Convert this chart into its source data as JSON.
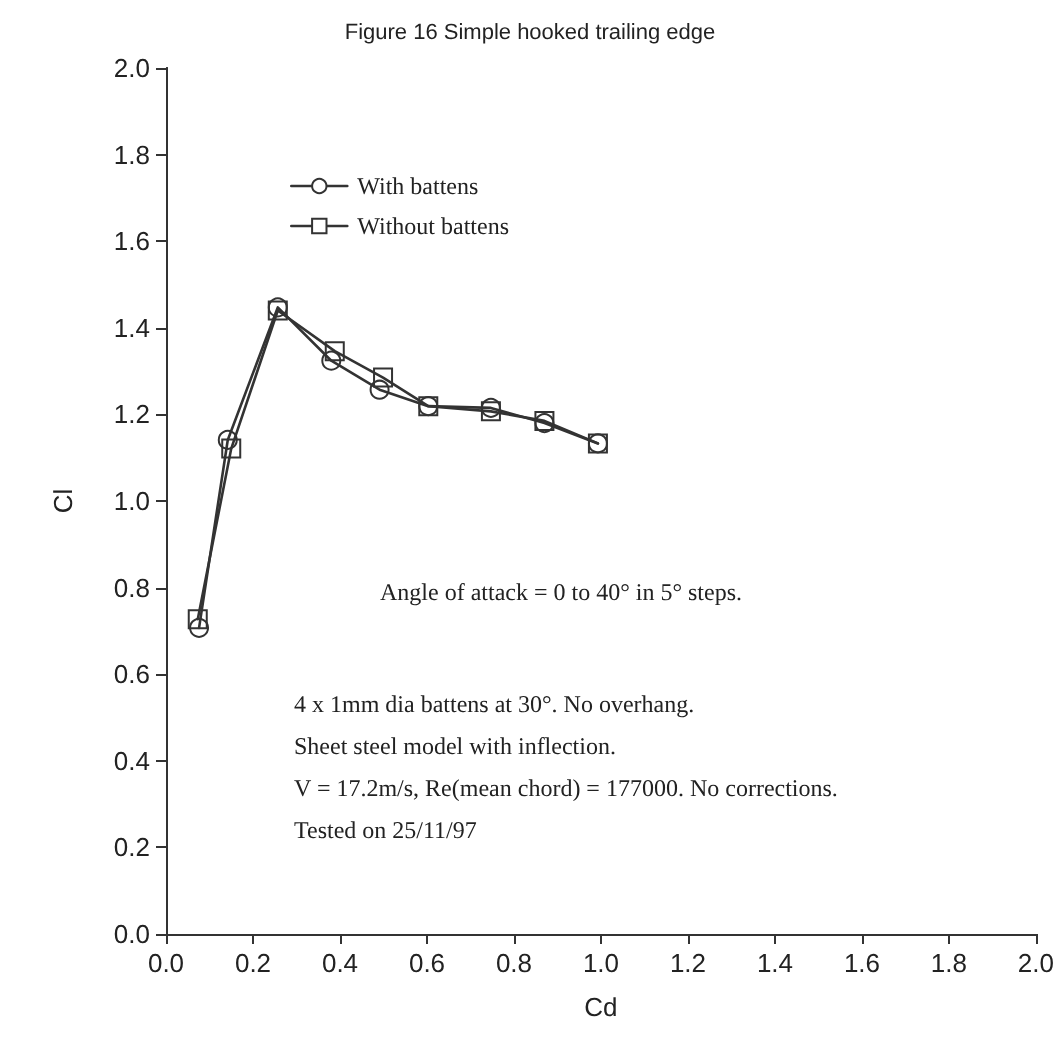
{
  "chart_data": {
    "type": "line",
    "title": "Figure 16 Simple hooked trailing edge",
    "xlabel": "Cd",
    "ylabel": "Cl",
    "xlim": [
      0,
      2
    ],
    "xticks": [
      {
        "value": 0,
        "label": "0.0"
      },
      0.2,
      0.4,
      0.6,
      0.8,
      {
        "value": 1,
        "label": "1.0"
      },
      1.2,
      1.4,
      1.6,
      1.8,
      {
        "value": 2,
        "label": "2.0"
      }
    ],
    "ylim": [
      0,
      2
    ],
    "yticks": [
      {
        "value": 0,
        "label": "0.0"
      },
      0.2,
      0.4,
      0.6,
      0.8,
      {
        "value": 1,
        "label": "1.0"
      },
      1.2,
      1.4,
      1.6,
      1.8,
      {
        "value": 2,
        "label": "2.0"
      }
    ],
    "grid": false,
    "legend": "top left",
    "series": [
      {
        "name": "With battens",
        "color": "#333333",
        "marker": "circle",
        "x": [
          0.076,
          0.142,
          0.257,
          0.38,
          0.491,
          0.603,
          0.747,
          0.87,
          0.993
        ],
        "values": [
          0.707,
          1.141,
          1.447,
          1.324,
          1.257,
          1.219,
          1.215,
          1.18,
          1.133
        ]
      },
      {
        "name": "Without battens",
        "color": "#333333",
        "marker": "square",
        "x": [
          0.073,
          0.15,
          0.257,
          0.388,
          0.499,
          0.603,
          0.747,
          0.87,
          0.993
        ],
        "values": [
          0.727,
          1.121,
          1.44,
          1.346,
          1.285,
          1.219,
          1.207,
          1.185,
          1.133
        ]
      }
    ],
    "annotations": [
      "Angle of attack = 0 to 40° in 5° steps.",
      "4 x 1mm dia battens at 30°. No overhang.",
      "Sheet steel model with inflection.",
      "V = 17.2m/s, Re(mean chord) = 177000. No corrections.",
      "Tested on 25/11/97"
    ]
  }
}
